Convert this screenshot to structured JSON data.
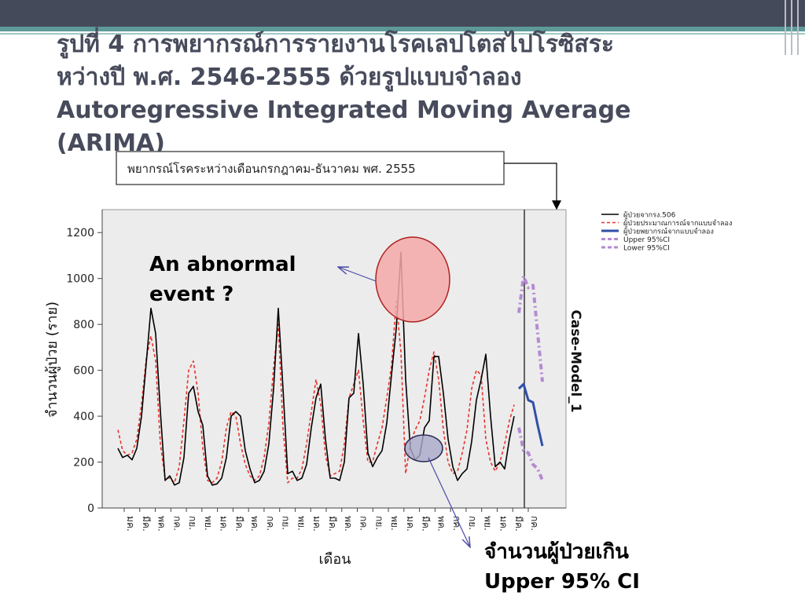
{
  "slide": {
    "title_lines": [
      "รูปที่ 4 การพยากรณ์การรายงานโรคเลปโตสไปโรซิสระ",
      "หว่างปี พ.ศ. 2546-2555 ด้วยรูปแบบจำลอง",
      "Autoregressive Integrated Moving Average",
      "(ARIMA)"
    ],
    "forecast_box": "พยากรณ์โรคระหว่างเดือนกรกฎาคม-ธันวาคม พศ. 2555",
    "callout_abnormal": "An abnormal event ?",
    "callout_exceed_line1": "จำนวนผู้ป่วยเกิน",
    "callout_exceed_line2": "Upper 95% CI"
  },
  "colors": {
    "observed": "#000000",
    "fitted": "#e8332b",
    "forecast": "#2f4fa8",
    "ci": "#b48ad2",
    "highlight_red": "#f4a9a9",
    "highlight_blue": "#a9a9c9",
    "plot_bg": "#ececec",
    "slide_bar": "#454a5a",
    "accent": "#5d9a98"
  },
  "chart_data": {
    "type": "line",
    "ylabel": "จำนวนผู้ป่วย (ราย)",
    "xlabel": "เดือน",
    "model_label": "Case-Model_1",
    "ylim": [
      0,
      1300
    ],
    "yticks": [
      0,
      200,
      400,
      600,
      800,
      1000,
      1200
    ],
    "xtick_labels": [
      "มค.",
      "มีค.",
      "พค.",
      "กค.",
      "กย.",
      "พย.",
      "มค.",
      "มีค.",
      "พค.",
      "กค.",
      "กย.",
      "พย.",
      "มค.",
      "มีค.",
      "พค.",
      "กค.",
      "กย.",
      "พย.",
      "มค.",
      "มีค.",
      "พค.",
      "กค.",
      "กย.",
      "พย.",
      "มค.",
      "มีค.",
      "กค."
    ],
    "legend_position": "top-right",
    "series": [
      {
        "name": "ผู้ป่วยจากรง.506",
        "style": "solid",
        "start_index": 0,
        "values": [
          260,
          220,
          230,
          210,
          260,
          400,
          630,
          870,
          760,
          420,
          120,
          140,
          100,
          110,
          220,
          500,
          530,
          420,
          360,
          140,
          100,
          105,
          130,
          220,
          400,
          420,
          400,
          250,
          170,
          110,
          120,
          160,
          280,
          520,
          870,
          520,
          150,
          160,
          120,
          130,
          190,
          350,
          480,
          540,
          300,
          130,
          130,
          120,
          200,
          480,
          500,
          760,
          540,
          240,
          180,
          220,
          250,
          370,
          580,
          780,
          1115,
          560,
          260,
          210,
          230,
          350,
          380,
          660,
          660,
          500,
          300,
          180,
          120,
          150,
          170,
          290,
          470,
          560,
          670,
          400,
          180,
          200,
          170,
          300,
          400
        ]
      },
      {
        "name": "ผู้ป่วยประมาณการณ์จากแบบจำลอง",
        "style": "dashed",
        "start_index": 0,
        "values": [
          340,
          250,
          230,
          240,
          300,
          450,
          650,
          750,
          640,
          280,
          130,
          130,
          110,
          180,
          380,
          600,
          640,
          500,
          260,
          120,
          110,
          130,
          200,
          350,
          420,
          400,
          280,
          190,
          140,
          120,
          140,
          220,
          370,
          610,
          800,
          350,
          110,
          130,
          130,
          170,
          280,
          420,
          560,
          450,
          230,
          140,
          150,
          160,
          280,
          480,
          540,
          600,
          380,
          200,
          200,
          280,
          350,
          480,
          620,
          900,
          680,
          150,
          280,
          340,
          380,
          480,
          600,
          680,
          560,
          340,
          200,
          150,
          160,
          240,
          340,
          520,
          600,
          580,
          300,
          200,
          160,
          200,
          280,
          380,
          450
        ]
      },
      {
        "name": "ผู้ป่วยพยากรณ์จากแบบจำลอง",
        "style": "solid-thick",
        "start_index": 85,
        "values": [
          520,
          540,
          470,
          460,
          360,
          270
        ]
      },
      {
        "name": "Upper 95%CI",
        "style": "dash-dot",
        "start_index": 85,
        "values": [
          850,
          1010,
          960,
          970,
          760,
          550
        ]
      },
      {
        "name": "Lower 95%CI",
        "style": "dash-dot",
        "start_index": 85,
        "values": [
          350,
          250,
          240,
          190,
          170,
          120
        ]
      }
    ]
  }
}
